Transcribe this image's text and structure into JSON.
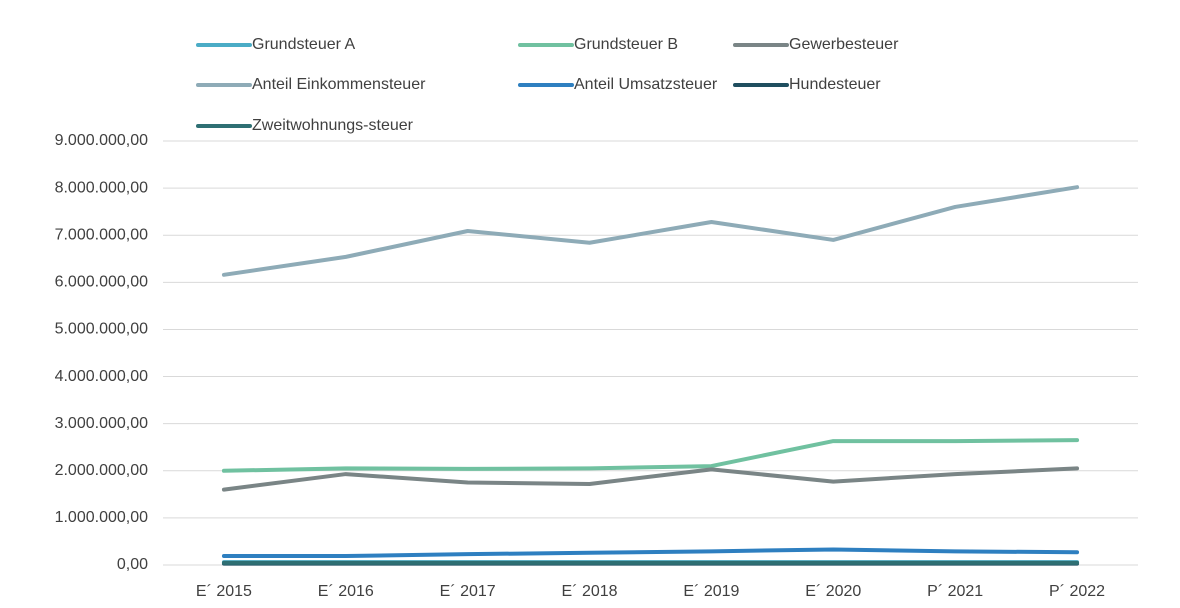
{
  "chart_data": {
    "type": "line",
    "categories": [
      "E´ 2015",
      "E´ 2016",
      "E´ 2017",
      "E´ 2018",
      "E´ 2019",
      "E´ 2020",
      "P´ 2021",
      "P´ 2022"
    ],
    "series": [
      {
        "name": "Grundsteuer A",
        "color": "#4bacc6",
        "values": [
          60000,
          60000,
          60000,
          60000,
          60000,
          60000,
          60000,
          60000
        ]
      },
      {
        "name": "Grundsteuer B",
        "color": "#70c1a0",
        "values": [
          2000000,
          2050000,
          2040000,
          2050000,
          2100000,
          2630000,
          2630000,
          2650000
        ]
      },
      {
        "name": "Gewerbesteuer",
        "color": "#7a8586",
        "values": [
          1600000,
          1930000,
          1750000,
          1720000,
          2030000,
          1770000,
          1930000,
          2050000
        ]
      },
      {
        "name": "Anteil Einkommensteuer",
        "color": "#8eabb7",
        "values": [
          6160000,
          6540000,
          7090000,
          6840000,
          7280000,
          6900000,
          7600000,
          8020000
        ]
      },
      {
        "name": "Anteil Umsatzsteuer",
        "color": "#2e7fc0",
        "values": [
          190000,
          190000,
          230000,
          260000,
          290000,
          330000,
          290000,
          270000
        ]
      },
      {
        "name": "Hundesteuer",
        "color": "#1f4e5f",
        "values": [
          30000,
          30000,
          30000,
          30000,
          30000,
          30000,
          30000,
          30000
        ]
      },
      {
        "name": "Zweitwohnungs-steuer",
        "color": "#2e6f73",
        "values": [
          45000,
          45000,
          45000,
          45000,
          45000,
          45000,
          45000,
          45000
        ]
      }
    ],
    "ylim": [
      0,
      9000000
    ],
    "yticks": [
      {
        "value": 0,
        "label": "0,00"
      },
      {
        "value": 1000000,
        "label": "1.000.000,00"
      },
      {
        "value": 2000000,
        "label": "2.000.000,00"
      },
      {
        "value": 3000000,
        "label": "3.000.000,00"
      },
      {
        "value": 4000000,
        "label": "4.000.000,00"
      },
      {
        "value": 5000000,
        "label": "5.000.000,00"
      },
      {
        "value": 6000000,
        "label": "6.000.000,00"
      },
      {
        "value": 7000000,
        "label": "7.000.000,00"
      },
      {
        "value": 8000000,
        "label": "8.000.000,00"
      },
      {
        "value": 9000000,
        "label": "9.000.000,00"
      }
    ],
    "grid": true,
    "legend": "top"
  }
}
